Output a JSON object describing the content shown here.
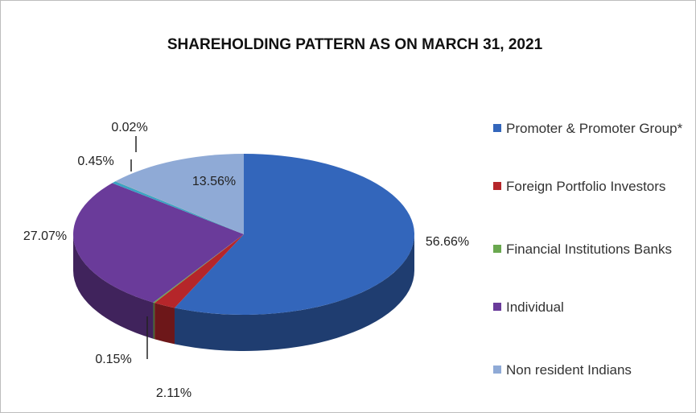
{
  "chart_data": {
    "type": "pie3d",
    "title": "SHAREHOLDING PATTERN AS ON MARCH 31, 2021",
    "categories": [
      "Promoter & Promoter Group*",
      "Foreign Portfolio Investors",
      "Financial Institutions Banks",
      "Individual",
      null,
      null,
      "Non resident Indians"
    ],
    "values": [
      56.66,
      2.11,
      0.15,
      27.07,
      0.45,
      0.02,
      13.56
    ],
    "value_labels": [
      "56.66%",
      "2.11%",
      "0.15%",
      "27.07%",
      "0.45%",
      "0.02%",
      "13.56%"
    ],
    "colors": [
      "#3366bb",
      "#b5262a",
      "#6aa84f",
      "#6a3b9a",
      "#3ba3c4",
      "#e08a2c",
      "#8faad6"
    ],
    "legend": "right"
  }
}
